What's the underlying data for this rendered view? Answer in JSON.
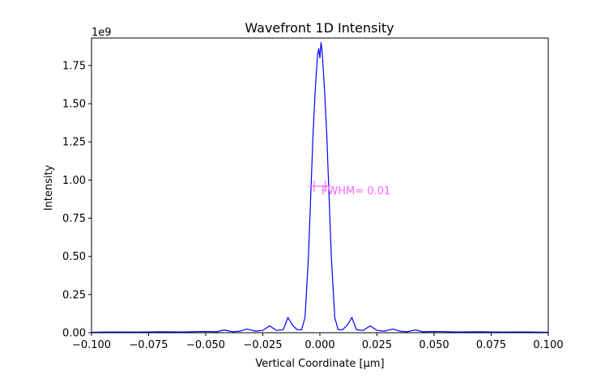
{
  "chart_data": {
    "type": "line",
    "title": "Wavefront 1D Intensity",
    "xlabel": "Vertical Coordinate [μm]",
    "ylabel": "Intensity",
    "y_offset_label": "1e9",
    "xlim": [
      -0.1,
      0.1
    ],
    "ylim": [
      0,
      1.93
    ],
    "x_ticks": [
      -0.1,
      -0.075,
      -0.05,
      -0.025,
      0.0,
      0.025,
      0.05,
      0.075,
      0.1
    ],
    "x_tick_labels": [
      "−0.100",
      "−0.075",
      "−0.050",
      "−0.025",
      "0.000",
      "0.025",
      "0.050",
      "0.075",
      "0.100"
    ],
    "y_ticks": [
      0,
      0.25,
      0.5,
      0.75,
      1.0,
      1.25,
      1.5,
      1.75
    ],
    "y_tick_labels": [
      "0.00",
      "0.25",
      "0.50",
      "0.75",
      "1.00",
      "1.25",
      "1.50",
      "1.75"
    ],
    "grid": false,
    "series": [
      {
        "color": "#0000ff",
        "x": [
          -0.1,
          -0.09,
          -0.08,
          -0.07,
          -0.06,
          -0.05,
          -0.045,
          -0.042,
          -0.038,
          -0.035,
          -0.032,
          -0.028,
          -0.025,
          -0.022,
          -0.019,
          -0.016,
          -0.014,
          -0.012,
          -0.01,
          -0.008,
          -0.0065,
          -0.005,
          -0.004,
          -0.003,
          -0.002,
          -0.001,
          -0.0005,
          0.0,
          0.0005,
          0.001,
          0.002,
          0.003,
          0.004,
          0.005,
          0.0065,
          0.008,
          0.01,
          0.012,
          0.014,
          0.016,
          0.019,
          0.022,
          0.025,
          0.028,
          0.032,
          0.035,
          0.038,
          0.042,
          0.045,
          0.05,
          0.06,
          0.07,
          0.08,
          0.09,
          0.1
        ],
        "y": [
          0.003,
          0.005,
          0.004,
          0.006,
          0.005,
          0.008,
          0.006,
          0.018,
          0.006,
          0.01,
          0.024,
          0.01,
          0.015,
          0.045,
          0.015,
          0.02,
          0.1,
          0.05,
          0.02,
          0.02,
          0.1,
          0.5,
          0.9,
          1.3,
          1.6,
          1.82,
          1.86,
          1.8,
          1.9,
          1.84,
          1.6,
          1.3,
          0.9,
          0.5,
          0.1,
          0.02,
          0.02,
          0.05,
          0.1,
          0.02,
          0.015,
          0.045,
          0.015,
          0.01,
          0.024,
          0.01,
          0.006,
          0.018,
          0.006,
          0.008,
          0.005,
          0.006,
          0.004,
          0.005,
          0.003
        ]
      }
    ],
    "annotation": {
      "text": "FWHM= 0.01",
      "color": "#ff66ff",
      "marker_points": [
        [
          -0.0025,
          0.96
        ],
        [
          0.0025,
          0.96
        ]
      ]
    }
  }
}
